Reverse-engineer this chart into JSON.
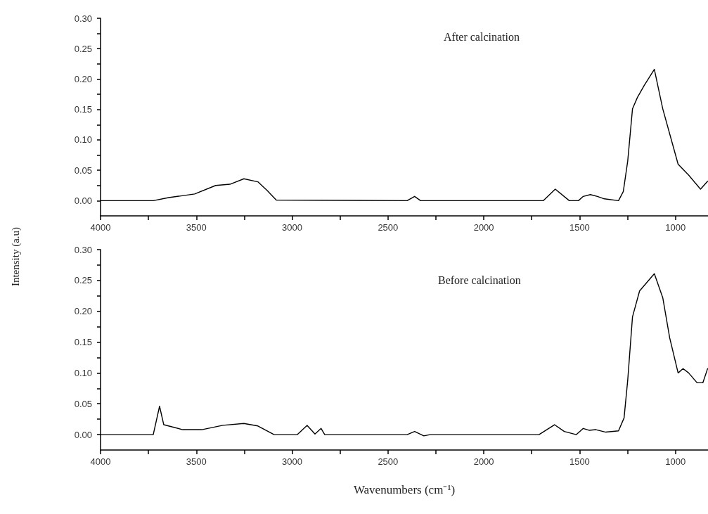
{
  "chart_data": [
    {
      "type": "line",
      "ylabel": "Intensity (a.u)",
      "annotations": [
        "After calcination"
      ],
      "series": [
        {
          "color": "#000000",
          "x": [
            4000,
            3725,
            3644,
            3509,
            3399,
            3325,
            3252,
            3179,
            3131,
            3083,
            2400,
            2361,
            2330,
            1690,
            1627,
            1554,
            1506,
            1481,
            1444,
            1407,
            1371,
            1297,
            1272,
            1249,
            1224,
            1198,
            1162,
            1110,
            1066,
            1030,
            986,
            931,
            869,
            832
          ],
          "values": [
            0,
            0,
            0.005,
            0.011,
            0.025,
            0.027,
            0.036,
            0.031,
            0.017,
            0.001,
            0,
            0.007,
            0,
            0,
            0.019,
            0,
            0,
            0.007,
            0.01,
            0.007,
            0.003,
            0,
            0.015,
            0.065,
            0.151,
            0.17,
            0.19,
            0.216,
            0.151,
            0.11,
            0.06,
            0.042,
            0.019,
            0.032
          ]
        }
      ],
      "xlim": [
        4000,
        830
      ],
      "ylim": [
        -0.025,
        0.3
      ],
      "xticks": [
        4000,
        {
          "value": 3750,
          "label": null
        },
        3500,
        {
          "value": 3250,
          "label": null
        },
        3000,
        {
          "value": 2750,
          "label": null
        },
        2500,
        {
          "value": 2250,
          "label": null
        },
        2000,
        {
          "value": 1750,
          "label": null
        },
        1500,
        {
          "value": 1250,
          "label": null
        },
        1000
      ],
      "yticks": [
        {
          "value": 0,
          "label": "0.00"
        },
        {
          "value": 0.025,
          "label": null
        },
        {
          "value": 0.05,
          "label": "0.05"
        },
        {
          "value": 0.075,
          "label": null
        },
        {
          "value": 0.1,
          "label": "0.10"
        },
        {
          "value": 0.125,
          "label": null
        },
        {
          "value": 0.15,
          "label": "0.15"
        },
        {
          "value": 0.175,
          "label": null
        },
        {
          "value": 0.2,
          "label": "0.20"
        },
        {
          "value": 0.225,
          "label": null
        },
        {
          "value": 0.25,
          "label": "0.25"
        },
        {
          "value": 0.275,
          "label": null
        },
        {
          "value": 0.3,
          "label": "0.30"
        }
      ],
      "grid": false,
      "marker": "none",
      "line_style": "solid"
    },
    {
      "type": "line",
      "xlabel": "Wavenumbers (cm⁻¹)",
      "annotations": [
        "Before calcination"
      ],
      "series": [
        {
          "color": "#000000",
          "x": [
            4000,
            3725,
            3692,
            3670,
            3571,
            3472,
            3362,
            3252,
            3179,
            3094,
            2973,
            2922,
            2881,
            2849,
            2830,
            2400,
            2361,
            2313,
            2280,
            1712,
            1631,
            1580,
            1517,
            1481,
            1451,
            1415,
            1363,
            1297,
            1268,
            1249,
            1224,
            1187,
            1110,
            1066,
            1030,
            986,
            960,
            931,
            887,
            857,
            832
          ],
          "values": [
            0,
            0,
            0.046,
            0.016,
            0.008,
            0.008,
            0.015,
            0.018,
            0.014,
            0,
            0,
            0.015,
            0.001,
            0.01,
            0,
            0,
            0.005,
            -0.002,
            0,
            0,
            0.016,
            0.005,
            0,
            0.01,
            0.007,
            0.008,
            0.004,
            0.006,
            0.027,
            0.088,
            0.191,
            0.233,
            0.261,
            0.222,
            0.157,
            0.1,
            0.107,
            0.1,
            0.084,
            0.084,
            0.107
          ]
        }
      ],
      "xlim": [
        4000,
        830
      ],
      "ylim": [
        -0.025,
        0.3
      ],
      "xticks": [
        4000,
        {
          "value": 3750,
          "label": null
        },
        3500,
        {
          "value": 3250,
          "label": null
        },
        3000,
        {
          "value": 2750,
          "label": null
        },
        2500,
        {
          "value": 2250,
          "label": null
        },
        2000,
        {
          "value": 1750,
          "label": null
        },
        1500,
        {
          "value": 1250,
          "label": null
        },
        1000
      ],
      "yticks": [
        {
          "value": 0,
          "label": "0.00"
        },
        {
          "value": 0.025,
          "label": null
        },
        {
          "value": 0.05,
          "label": "0.05"
        },
        {
          "value": 0.075,
          "label": null
        },
        {
          "value": 0.1,
          "label": "0.10"
        },
        {
          "value": 0.125,
          "label": null
        },
        {
          "value": 0.15,
          "label": "0.15"
        },
        {
          "value": 0.175,
          "label": null
        },
        {
          "value": 0.2,
          "label": "0.20"
        },
        {
          "value": 0.225,
          "label": null
        },
        {
          "value": 0.25,
          "label": "0.25"
        },
        {
          "value": 0.275,
          "label": null
        },
        {
          "value": 0.3,
          "label": "0.30"
        }
      ],
      "grid": false,
      "marker": "none",
      "line_style": "solid"
    }
  ]
}
